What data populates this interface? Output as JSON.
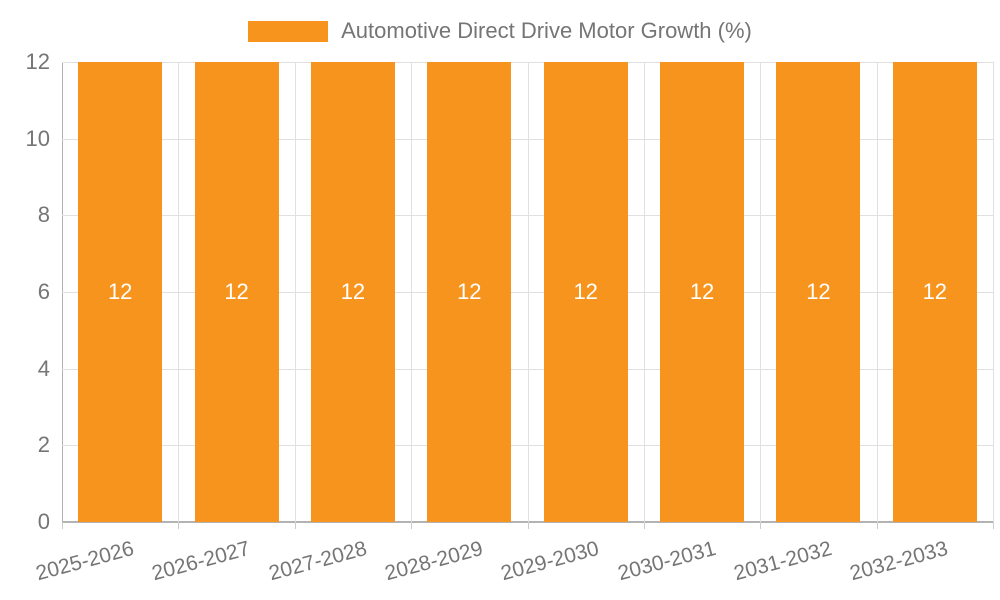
{
  "chart_data": {
    "type": "bar",
    "title": "",
    "categories": [
      "2025-2026",
      "2026-2027",
      "2027-2028",
      "2028-2029",
      "2029-2030",
      "2030-2031",
      "2031-2032",
      "2032-2033"
    ],
    "series": [
      {
        "name": "Automotive Direct Drive Motor Growth (%)",
        "values": [
          12,
          12,
          12,
          12,
          12,
          12,
          12,
          12
        ],
        "color": "#f7941e"
      }
    ],
    "value_labels": [
      "12",
      "12",
      "12",
      "12",
      "12",
      "12",
      "12",
      "12"
    ],
    "xlabel": "",
    "ylabel": "",
    "ylim": [
      0,
      12
    ],
    "yticks": [
      0,
      2,
      4,
      6,
      8,
      10,
      12
    ],
    "grid": true,
    "legend_position": "top-center"
  },
  "legend": {
    "label": "Automotive Direct Drive Motor Growth (%)"
  },
  "colors": {
    "bar": "#f7941e",
    "axis_label": "#757575",
    "value_label": "#ffffff",
    "gridline": "#e0e0e0",
    "axis_line": "#b3b3b3",
    "background": "#ffffff"
  }
}
